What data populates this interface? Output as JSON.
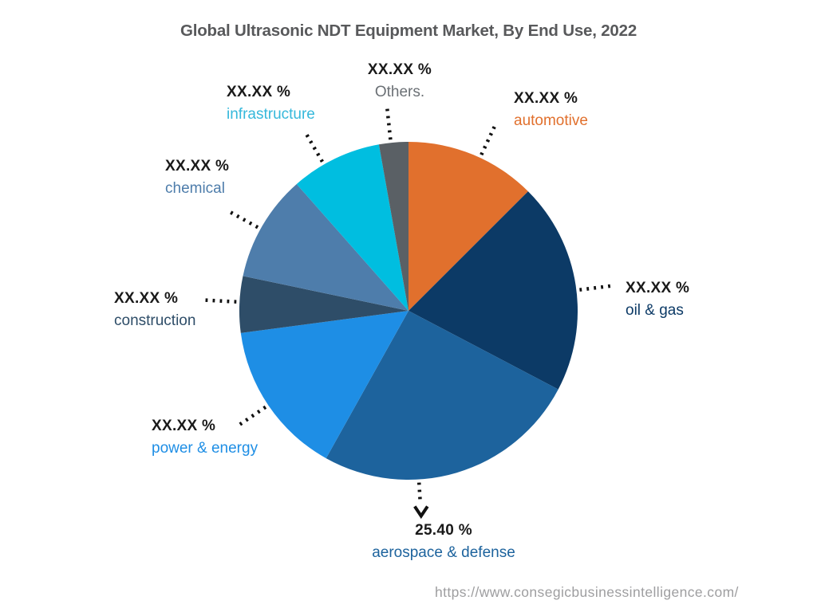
{
  "page": {
    "source_url": "https://www.consegicbusinessintelligence.com/"
  },
  "chart_data": {
    "type": "pie",
    "title": "Global Ultrasonic NDT Equipment Market, By End Use, 2022",
    "unit": "%",
    "start_angle_deg": 0,
    "direction": "clockwise",
    "legend_position": "outside-callouts-with-dotted-leaders",
    "title_color": "#58595B",
    "value_label_color": "#1A1A1A",
    "source_url_color": "#9E9EA0",
    "leader_line_color": "#111111",
    "slices": [
      {
        "label": "automotive",
        "value": 12.5,
        "display_value": "XX.XX %",
        "color": "#E1702D",
        "label_color": "#E1702D"
      },
      {
        "label": "oil & gas",
        "value": 20.2,
        "display_value": "XX.XX %",
        "color": "#0C3A66",
        "label_color": "#0C3A66"
      },
      {
        "label": "aerospace & defense",
        "value": 25.4,
        "display_value": "25.40 %",
        "color": "#1D639D",
        "label_color": "#1D639D"
      },
      {
        "label": "power & energy",
        "value": 14.8,
        "display_value": "XX.XX %",
        "color": "#1E8EE5",
        "label_color": "#1E8EE5"
      },
      {
        "label": "construction",
        "value": 5.4,
        "display_value": "XX.XX %",
        "color": "#2E4D68",
        "label_color": "#2E4D68"
      },
      {
        "label": "chemical",
        "value": 10.2,
        "display_value": "XX.XX %",
        "color": "#4E7DAB",
        "label_color": "#4E7DAB"
      },
      {
        "label": "infrastructure",
        "value": 8.7,
        "display_value": "XX.XX %",
        "color": "#00BEE0",
        "label_color": "#35B8DB"
      },
      {
        "label": "Others.",
        "value": 2.8,
        "display_value": "XX.XX %",
        "color": "#5A6065",
        "label_color": "#6B7075"
      }
    ]
  }
}
